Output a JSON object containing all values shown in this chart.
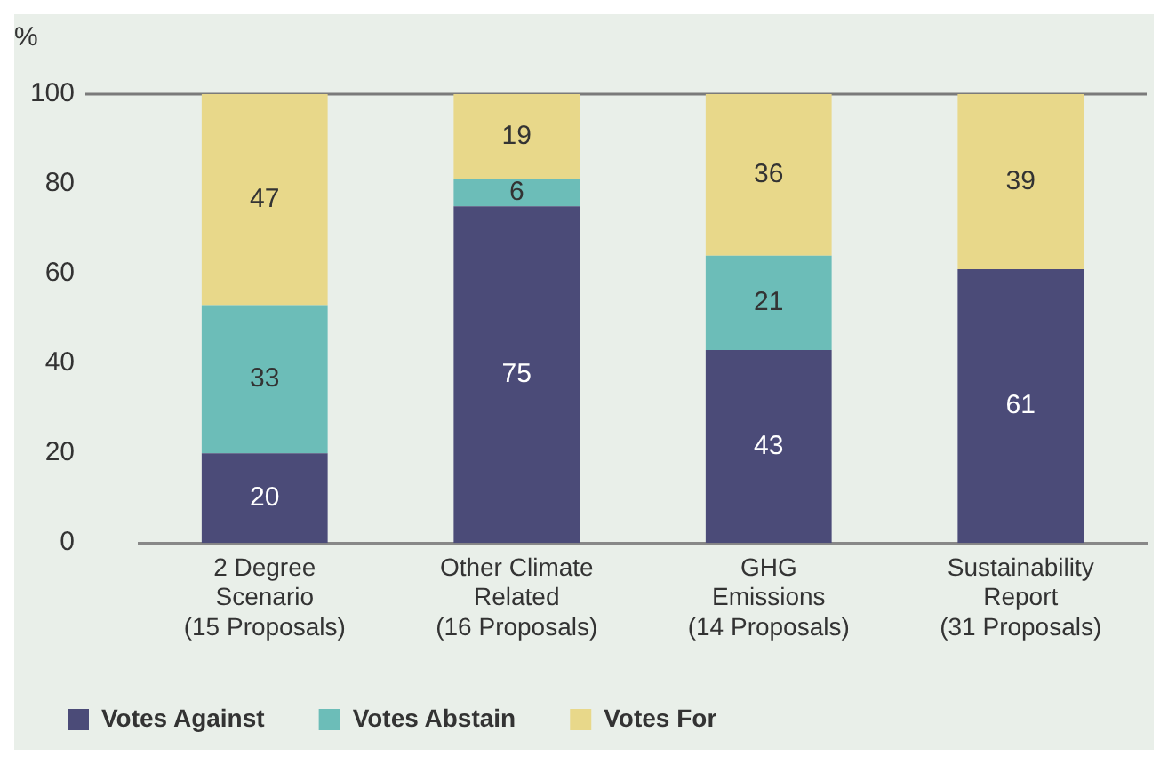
{
  "chart_data": {
    "type": "bar",
    "stacked": true,
    "ylabel": "%",
    "categories": [
      "2 Degree\nScenario\n(15 Proposals)",
      "Other Climate\nRelated\n(16 Proposals)",
      "GHG\nEmissions\n(14 Proposals)",
      "Sustainability\nReport\n(31 Proposals)"
    ],
    "series": [
      {
        "name": "Votes Against",
        "color": "#4b4b78",
        "values": [
          20,
          75,
          43,
          61
        ],
        "value_labels": [
          "20",
          "75",
          "43",
          "61"
        ]
      },
      {
        "name": "Votes Abstain",
        "color": "#6cbdb8",
        "values": [
          33,
          6,
          21,
          0
        ],
        "value_labels": [
          "33",
          "6",
          "21",
          null
        ]
      },
      {
        "name": "Votes For",
        "color": "#e8d88a",
        "values": [
          47,
          19,
          36,
          39
        ],
        "value_labels": [
          "47",
          "19",
          "36",
          "39"
        ]
      }
    ],
    "ylim": [
      0,
      100
    ],
    "yticks": [
      0,
      20,
      40,
      60,
      80,
      100
    ],
    "grid": false,
    "legend": "bottom left",
    "ref_lines": [
      {
        "axis": "y",
        "value": 100,
        "color": "#7a7a7a"
      }
    ]
  }
}
